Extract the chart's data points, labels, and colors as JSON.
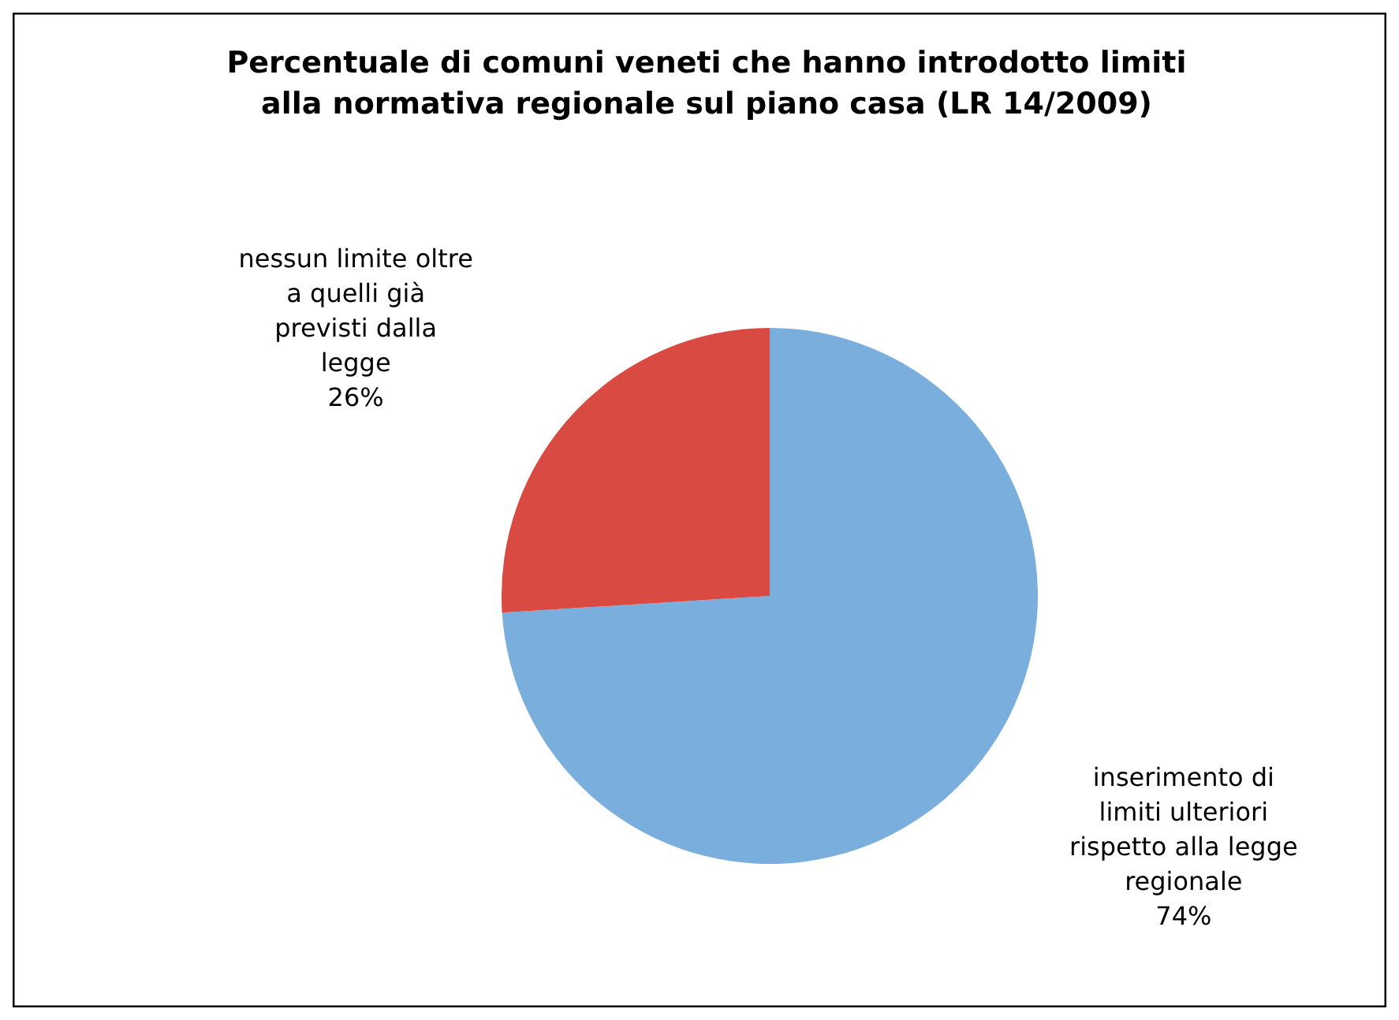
{
  "chart_data": {
    "type": "pie",
    "title": "Percentuale di comuni veneti che hanno introdotto limiti alla normativa regionale sul piano casa (LR 14/2009)",
    "categories": [
      "inserimento di limiti ulteriori rispetto alla legge regionale",
      "nessun limite oltre a quelli già previsti dalla legge"
    ],
    "values": [
      74,
      26
    ],
    "value_labels": [
      "74%",
      "26%"
    ],
    "colors": [
      "#7aaedc",
      "#d94a42"
    ],
    "legend": false
  }
}
